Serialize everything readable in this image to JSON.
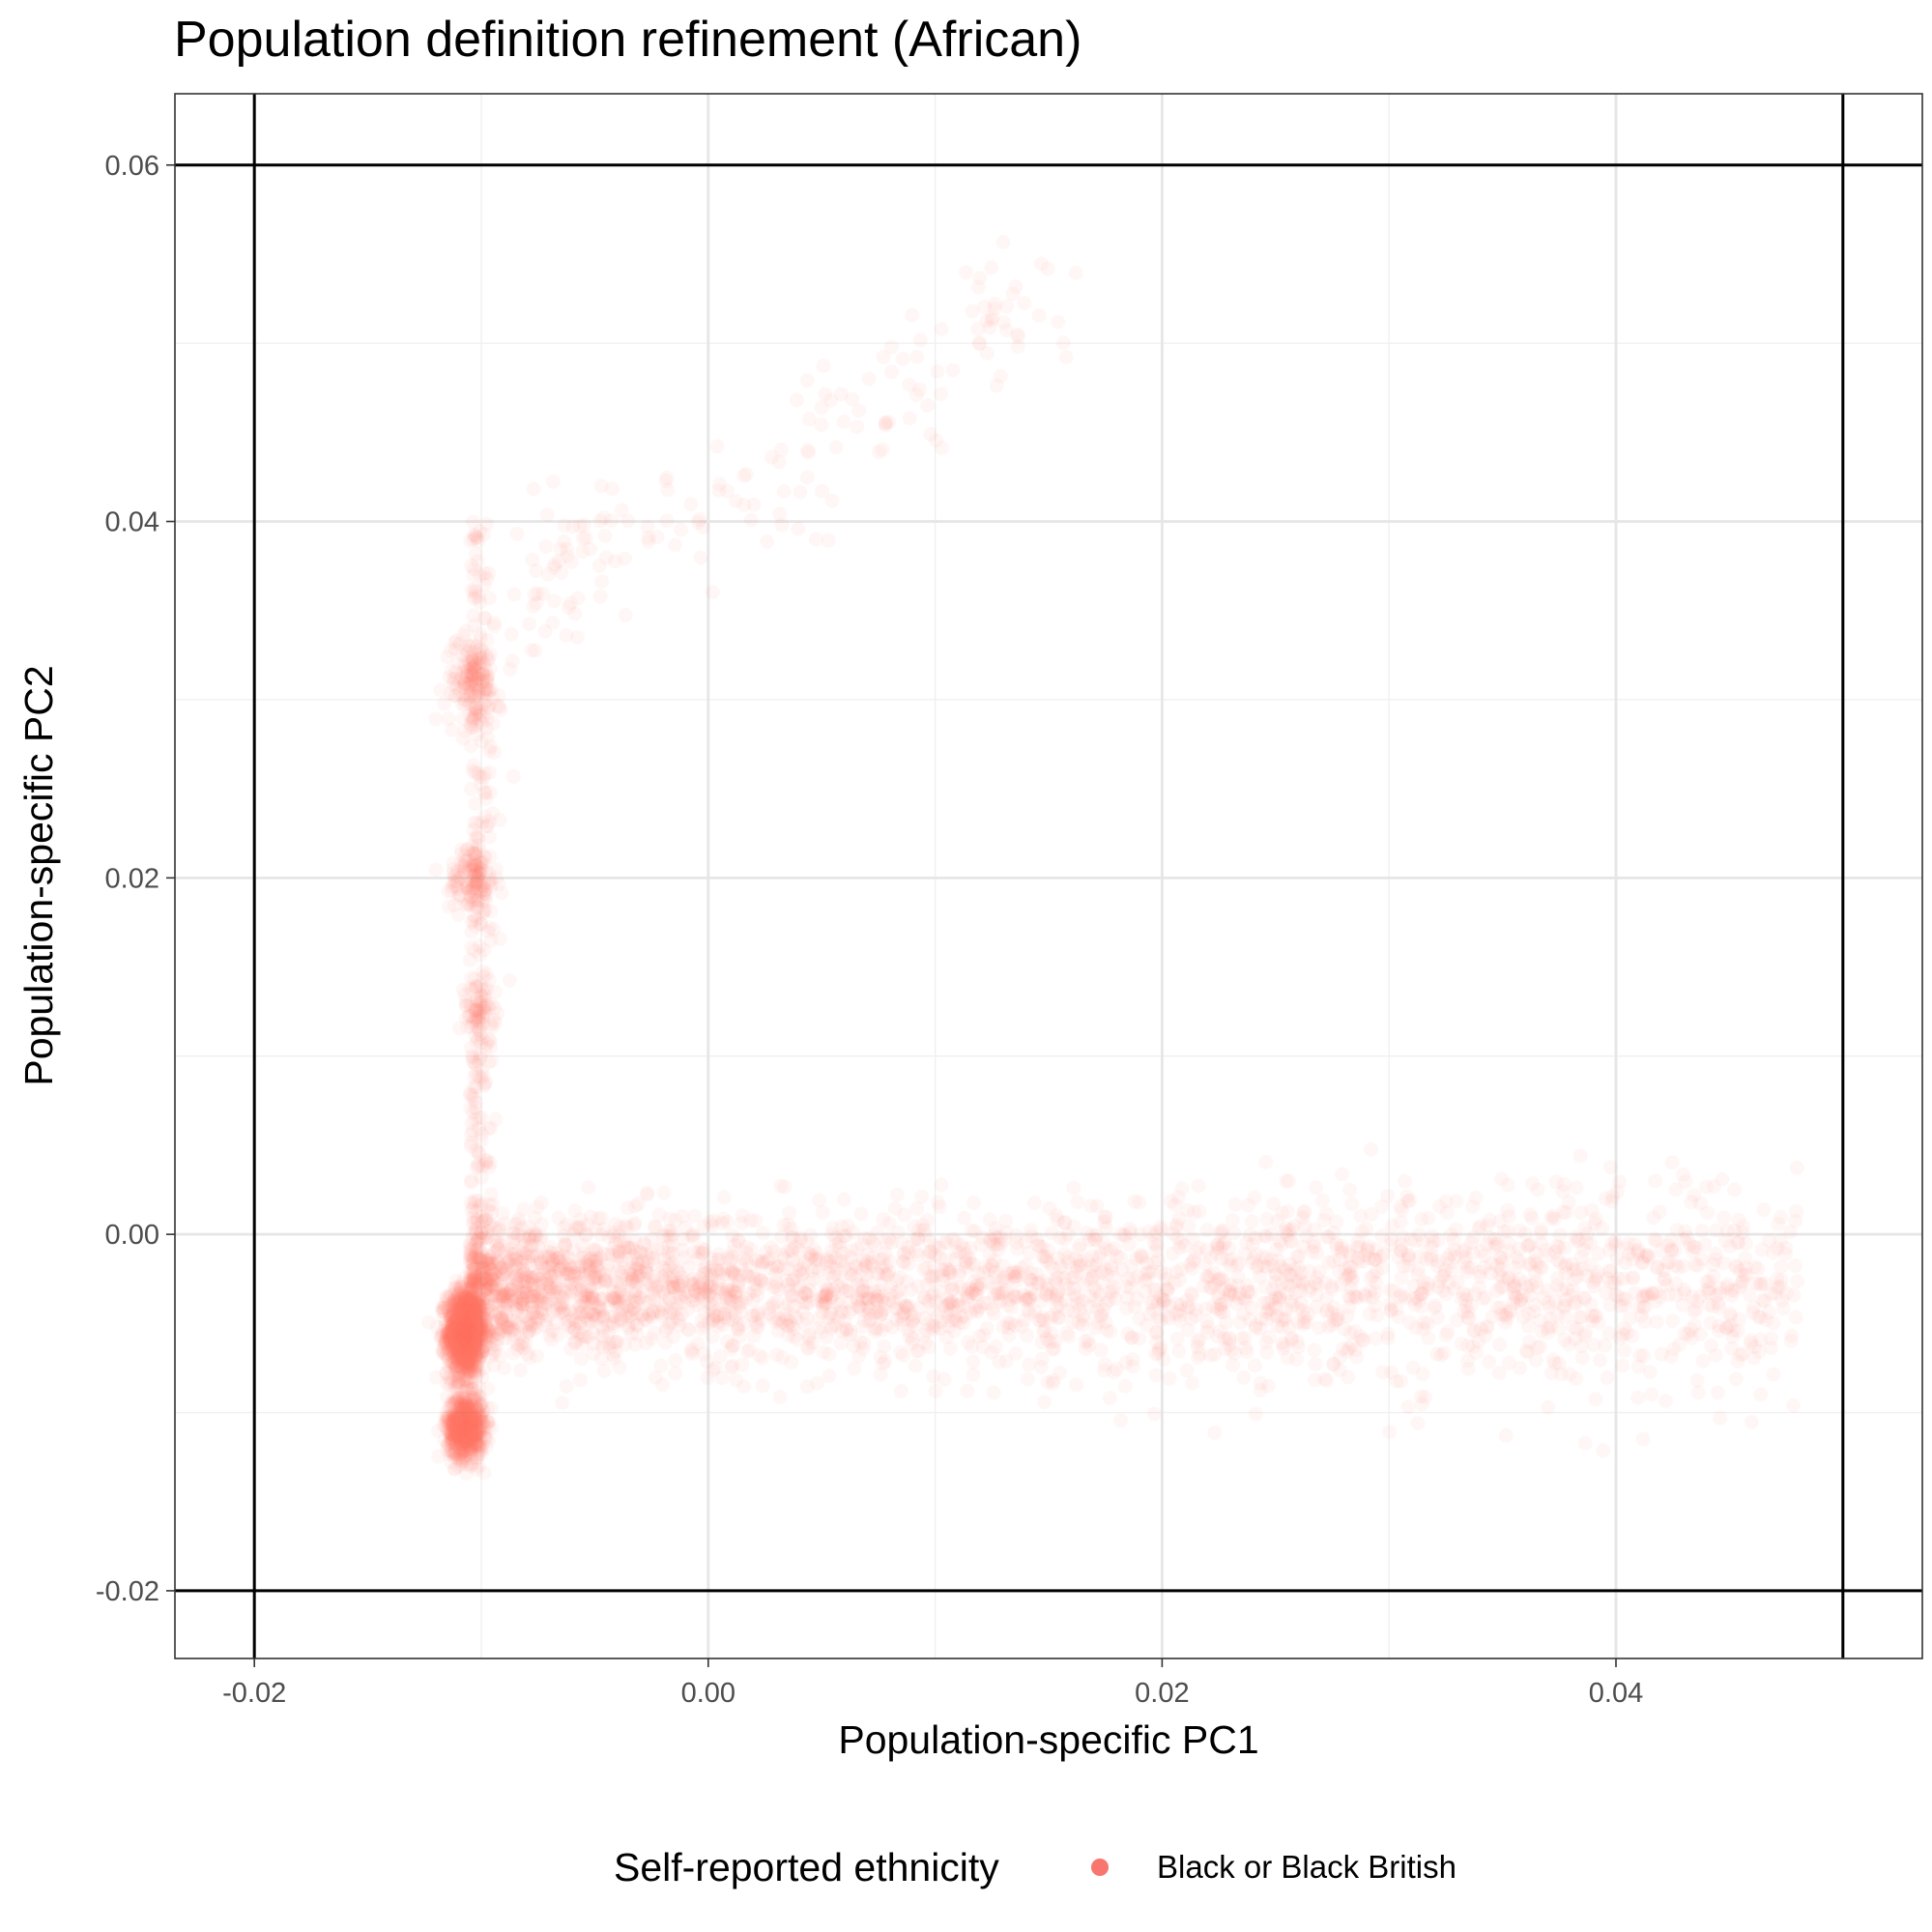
{
  "chart_data": {
    "type": "scatter",
    "title": "Population definition refinement (African)",
    "xlabel": "Population-specific PC1",
    "ylabel": "Population-specific PC2",
    "xlim": [
      -0.0235,
      0.0535
    ],
    "ylim": [
      -0.0238,
      0.064
    ],
    "x_ticks": [
      -0.02,
      0.0,
      0.02,
      0.04
    ],
    "x_tick_labels": [
      "-0.02",
      "0.00",
      "0.02",
      "0.04"
    ],
    "y_ticks": [
      -0.02,
      0.0,
      0.02,
      0.04,
      0.06
    ],
    "y_tick_labels": [
      "-0.02",
      "0.00",
      "0.02",
      "0.04",
      "0.06"
    ],
    "grid": true,
    "reference_lines": {
      "vertical": [
        -0.02,
        0.05
      ],
      "horizontal": [
        -0.02,
        0.06
      ]
    },
    "legend": {
      "title": "Self-reported ethnicity",
      "position": "bottom",
      "entries": [
        {
          "label": "Black or Black British",
          "color": "#F8766D"
        }
      ]
    },
    "series": [
      {
        "name": "Black or Black British",
        "color": "#F8766D",
        "opacity": 0.06,
        "n_points": 6000,
        "clusters": [
          {
            "x_center": -0.0107,
            "y_center": -0.0055,
            "x_spread": 0.0004,
            "y_spread": 0.0012,
            "share": 0.22
          },
          {
            "x_center": -0.0107,
            "y_center": -0.0108,
            "x_spread": 0.0004,
            "y_spread": 0.0009,
            "share": 0.12
          },
          {
            "x_center": -0.0104,
            "y_center": 0.031,
            "x_spread": 0.0006,
            "y_spread": 0.0012,
            "share": 0.025
          },
          {
            "x_center": -0.0104,
            "y_center": 0.02,
            "x_spread": 0.0005,
            "y_spread": 0.001,
            "share": 0.02
          },
          {
            "x_center": -0.0102,
            "y_center": 0.0125,
            "x_spread": 0.0004,
            "y_spread": 0.0008,
            "share": 0.01
          }
        ],
        "horizontal_arm": {
          "x_start": -0.0105,
          "x_end": 0.048,
          "y_center": -0.003,
          "y_spread": 0.003,
          "share": 0.53
        },
        "vertical_arm": {
          "x_center": -0.0105,
          "x_spread": 0.0006,
          "y_start": -0.006,
          "y_end": 0.04,
          "share": 0.05
        },
        "upper_curve": {
          "points": [
            [
              -0.009,
              0.034
            ],
            [
              -0.005,
              0.039
            ],
            [
              0.0,
              0.04
            ],
            [
              0.005,
              0.044
            ],
            [
              0.01,
              0.049
            ],
            [
              0.015,
              0.053
            ]
          ],
          "spread": 0.0018,
          "share": 0.03
        }
      }
    ]
  }
}
